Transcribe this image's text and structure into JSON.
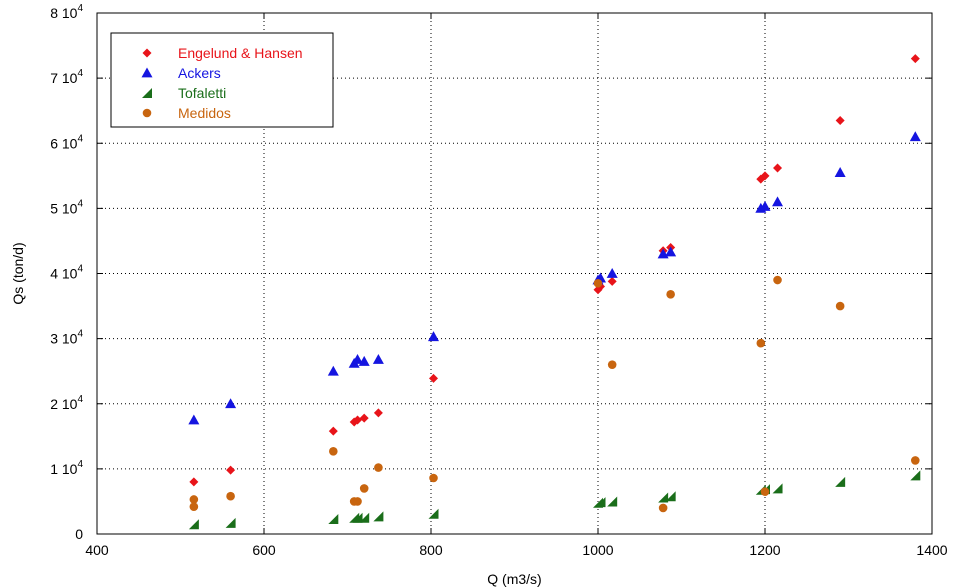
{
  "chart_data": {
    "type": "scatter",
    "title": "",
    "xlabel": "Q (m3/s)",
    "ylabel": "Qs (ton/d)",
    "xlim": [
      400,
      1400
    ],
    "ylim": [
      0,
      80000
    ],
    "grid": true,
    "legend_position": "top-left",
    "x_ticks": [
      {
        "value": 400,
        "label": "400"
      },
      {
        "value": 600,
        "label": "600"
      },
      {
        "value": 800,
        "label": "800"
      },
      {
        "value": 1000,
        "label": "1000"
      },
      {
        "value": 1200,
        "label": "1200"
      },
      {
        "value": 1400,
        "label": "1400"
      }
    ],
    "y_ticks": [
      {
        "value": 0,
        "mant": "0",
        "exp": ""
      },
      {
        "value": 10000,
        "mant": "1 10",
        "exp": "4"
      },
      {
        "value": 20000,
        "mant": "2 10",
        "exp": "4"
      },
      {
        "value": 30000,
        "mant": "3 10",
        "exp": "4"
      },
      {
        "value": 40000,
        "mant": "4 10",
        "exp": "4"
      },
      {
        "value": 50000,
        "mant": "5 10",
        "exp": "4"
      },
      {
        "value": 60000,
        "mant": "6 10",
        "exp": "4"
      },
      {
        "value": 70000,
        "mant": "7 10",
        "exp": "4"
      },
      {
        "value": 80000,
        "mant": "8 10",
        "exp": "4"
      }
    ],
    "series": [
      {
        "name": "Engelund & Hansen",
        "marker": "diamond",
        "color": "#e8141a",
        "points": [
          [
            516,
            8000
          ],
          [
            560,
            9800
          ],
          [
            683,
            15800
          ],
          [
            708,
            17200
          ],
          [
            712,
            17500
          ],
          [
            720,
            17800
          ],
          [
            737,
            18600
          ],
          [
            803,
            23900
          ],
          [
            1000,
            37500
          ],
          [
            1003,
            38000
          ],
          [
            1017,
            38800
          ],
          [
            1078,
            43500
          ],
          [
            1087,
            44000
          ],
          [
            1195,
            54500
          ],
          [
            1200,
            55000
          ],
          [
            1215,
            56200
          ],
          [
            1290,
            63500
          ],
          [
            1380,
            73000
          ]
        ]
      },
      {
        "name": "Ackers",
        "marker": "triangle",
        "color": "#1515e0",
        "points": [
          [
            516,
            17500
          ],
          [
            560,
            20000
          ],
          [
            683,
            25000
          ],
          [
            708,
            26200
          ],
          [
            712,
            26800
          ],
          [
            720,
            26500
          ],
          [
            737,
            26800
          ],
          [
            803,
            30300
          ],
          [
            1000,
            39000
          ],
          [
            1003,
            39300
          ],
          [
            1017,
            40000
          ],
          [
            1078,
            43000
          ],
          [
            1087,
            43300
          ],
          [
            1195,
            50000
          ],
          [
            1200,
            50300
          ],
          [
            1215,
            51000
          ],
          [
            1290,
            55500
          ],
          [
            1380,
            61000
          ]
        ]
      },
      {
        "name": "Tofaletti",
        "marker": "wedge",
        "color": "#1a6e1a",
        "points": [
          [
            516,
            1500
          ],
          [
            560,
            1700
          ],
          [
            683,
            2300
          ],
          [
            708,
            2500
          ],
          [
            712,
            2500
          ],
          [
            720,
            2500
          ],
          [
            737,
            2700
          ],
          [
            803,
            3100
          ],
          [
            1000,
            4800
          ],
          [
            1003,
            4900
          ],
          [
            1017,
            5000
          ],
          [
            1078,
            5600
          ],
          [
            1087,
            5800
          ],
          [
            1195,
            6800
          ],
          [
            1200,
            6900
          ],
          [
            1215,
            7000
          ],
          [
            1290,
            8000
          ],
          [
            1380,
            9000
          ]
        ]
      },
      {
        "name": "Medidos",
        "marker": "circle",
        "color": "#c8650f",
        "points": [
          [
            516,
            5300
          ],
          [
            516,
            4200
          ],
          [
            560,
            5800
          ],
          [
            683,
            12700
          ],
          [
            708,
            5000
          ],
          [
            712,
            5000
          ],
          [
            720,
            7000
          ],
          [
            737,
            10200
          ],
          [
            803,
            8600
          ],
          [
            1000,
            38500
          ],
          [
            1017,
            26000
          ],
          [
            1078,
            4000
          ],
          [
            1087,
            36800
          ],
          [
            1195,
            29300
          ],
          [
            1200,
            6500
          ],
          [
            1215,
            39000
          ],
          [
            1290,
            35000
          ],
          [
            1380,
            11300
          ]
        ]
      }
    ]
  }
}
